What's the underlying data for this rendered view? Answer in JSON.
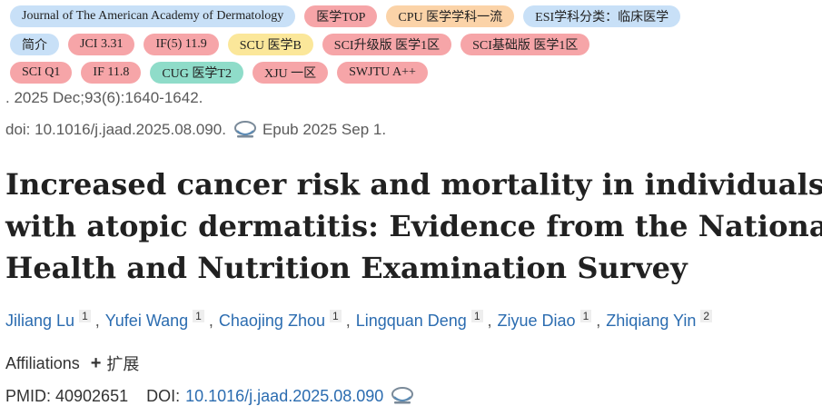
{
  "tags": {
    "row1": [
      {
        "label": "Journal of The American Academy of Dermatology",
        "color": "blue"
      },
      {
        "label": "医学TOP",
        "color": "red"
      },
      {
        "label": "CPU 医学学科一流",
        "color": "orange"
      },
      {
        "label": "ESI学科分类：临床医学",
        "color": "blue"
      }
    ],
    "row2": [
      {
        "label": "简介",
        "color": "blue"
      },
      {
        "label": "JCI 3.31",
        "color": "red"
      },
      {
        "label": "IF(5) 11.9",
        "color": "red"
      },
      {
        "label": "SCU 医学B",
        "color": "yellow"
      },
      {
        "label": "SCI升级版 医学1区",
        "color": "red"
      },
      {
        "label": "SCI基础版 医学1区",
        "color": "red"
      }
    ],
    "row3": [
      {
        "label": "SCI Q1",
        "color": "red"
      },
      {
        "label": "IF 11.8",
        "color": "red"
      },
      {
        "label": "CUG 医学T2",
        "color": "teal"
      },
      {
        "label": "XJU 一区",
        "color": "red"
      },
      {
        "label": "SWJTU A++",
        "color": "red"
      }
    ]
  },
  "citation": {
    "volume": ". 2025 Dec;93(6):1640-1642.",
    "doi": "doi: 10.1016/j.jaad.2025.08.090.",
    "epub": "Epub 2025 Sep 1."
  },
  "title_lines": [
    "Increased cancer risk and mortality in individuals",
    "with atopic dermatitis: Evidence from the National",
    "Health and Nutrition Examination Survey"
  ],
  "authors": [
    {
      "name": "Jiliang Lu",
      "aff": "1"
    },
    {
      "name": "Yufei Wang",
      "aff": "1"
    },
    {
      "name": "Chaojing Zhou",
      "aff": "1"
    },
    {
      "name": "Lingquan Deng",
      "aff": "1"
    },
    {
      "name": "Ziyue Diao",
      "aff": "1"
    },
    {
      "name": "Zhiqiang Yin",
      "aff": "2"
    }
  ],
  "affiliations": {
    "label": "Affiliations",
    "expand_label": "扩展"
  },
  "identifiers": {
    "pmid": "PMID: 40902651",
    "doi_label": "DOI:",
    "doi_value": "10.1016/j.jaad.2025.08.090"
  },
  "icons": {
    "cite": "citation-icon",
    "plus": "plus-icon"
  }
}
